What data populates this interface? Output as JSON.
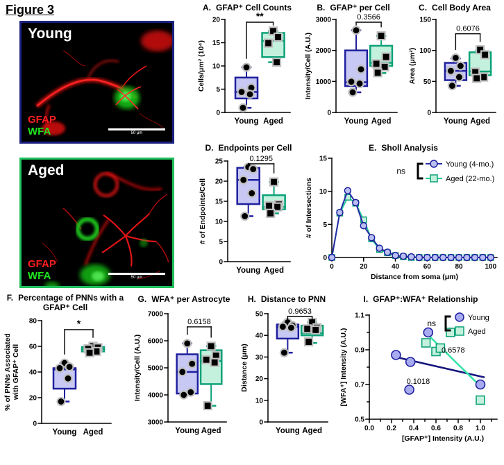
{
  "figure_title": "Figure 3",
  "colors": {
    "young_fill": "#c7c8f4",
    "young_edge": "#1f1f9e",
    "young_line": "#2a2aa8",
    "young_trend": "#15157d",
    "aged_fill": "#c4f1dd",
    "aged_edge": "#0ca178",
    "aged_line": "#25cf97",
    "aged_trend": "#37e3a8",
    "marker": "#000000",
    "marker_halo": "#c0c0c0",
    "gfap_red": "#ff1f1f",
    "wfa_green": "#21e321",
    "young_border": "#1b2180",
    "aged_border": "#1fc05c"
  },
  "images": [
    {
      "name": "Young",
      "gfap_label": "GFAP",
      "wfa_label": "WFA",
      "scale_label": "50 μm"
    },
    {
      "name": "Aged",
      "gfap_label": "GFAP",
      "wfa_label": "WFA",
      "scale_label": "50 μm"
    }
  ],
  "chart_data": [
    {
      "id": "A",
      "type": "box",
      "label": "A.",
      "title": "GFAP⁺ Cell Counts",
      "ylabel": "Cells/μm² (10⁴)",
      "ylim": [
        0,
        20
      ],
      "yticks": [
        0,
        5,
        10,
        15,
        20
      ],
      "p_label": "**",
      "categories": [
        "Young",
        "Aged"
      ],
      "groups": [
        {
          "name": "Young",
          "q1": 3.0,
          "median": 4.4,
          "q3": 7.5,
          "lo": 1.0,
          "hi": 9.7,
          "points": [
            9.7,
            5.3,
            4.4,
            3.9,
            1.0
          ]
        },
        {
          "name": "Aged",
          "q1": 11.9,
          "median": 15.4,
          "q3": 17.1,
          "lo": 10.8,
          "hi": 17.5,
          "points": [
            17.5,
            16.2,
            14.9,
            10.8
          ]
        }
      ]
    },
    {
      "id": "B",
      "type": "box",
      "label": "B.",
      "title": "GFAP⁺ per Cell",
      "ylabel": "Intensity/Cell (A.U.)",
      "ylim": [
        0,
        3000
      ],
      "yticks": [
        0,
        1000,
        2000,
        3000
      ],
      "p_label": "0.3566",
      "categories": [
        "Young",
        "Aged"
      ],
      "groups": [
        {
          "name": "Young",
          "q1": 850,
          "median": 975,
          "q3": 2000,
          "lo": 650,
          "hi": 2650,
          "points": [
            2650,
            1390,
            990,
            930,
            650
          ]
        },
        {
          "name": "Aged",
          "q1": 1500,
          "median": 1600,
          "q3": 2150,
          "lo": 1270,
          "hi": 2470,
          "points": [
            2470,
            1790,
            1570,
            1470,
            1280
          ]
        }
      ]
    },
    {
      "id": "C",
      "type": "box",
      "label": "C.",
      "title": "Cell Body Area",
      "ylabel": "Area (μm²)",
      "ylim": [
        0,
        150
      ],
      "yticks": [
        0,
        50,
        100,
        150
      ],
      "p_label": "0.6076",
      "categories": [
        "Young",
        "Aged"
      ],
      "groups": [
        {
          "name": "Young",
          "q1": 52,
          "median": 67,
          "q3": 80,
          "lo": 43,
          "hi": 87,
          "points": [
            88,
            75,
            67,
            57,
            43
          ]
        },
        {
          "name": "Aged",
          "q1": 60,
          "median": 66,
          "q3": 97,
          "lo": 57,
          "hi": 100,
          "points": [
            101,
            93,
            65,
            57,
            55
          ]
        }
      ]
    },
    {
      "id": "D",
      "type": "box",
      "label": "D.",
      "title": "Endpoints per Cell",
      "ylabel": "# of Endpoints/Cell",
      "ylim": [
        0,
        25
      ],
      "yticks": [
        0,
        5,
        10,
        15,
        20,
        25
      ],
      "p_label": "0.1295",
      "categories": [
        "Young",
        "Aged"
      ],
      "groups": [
        {
          "name": "Young",
          "q1": 14.3,
          "median": 20.3,
          "q3": 23.3,
          "lo": 11.3,
          "hi": 23.5,
          "points": [
            23.5,
            23.0,
            20.3,
            17.0,
            11.3
          ]
        },
        {
          "name": "Aged",
          "q1": 13.0,
          "median": 13.6,
          "q3": 16.5,
          "lo": 12.0,
          "hi": 19.8,
          "points": [
            19.8,
            14.2,
            13.9,
            13.6,
            12.0
          ]
        }
      ]
    },
    {
      "id": "E",
      "type": "line",
      "label": "E.",
      "title": "Sholl Analysis",
      "xlabel": "Distance from soma (μm)",
      "ylabel": "# of Intersections",
      "xlim": [
        0,
        104
      ],
      "ylim": [
        0,
        15
      ],
      "xticks": [
        0,
        20,
        40,
        60,
        80,
        100
      ],
      "yticks": [
        0,
        5,
        10,
        15
      ],
      "legend": {
        "ns": "ns",
        "items": [
          "Young (4-mo.)",
          "Aged (22-mo.)"
        ]
      },
      "x": [
        0,
        5,
        10,
        15,
        20,
        25,
        30,
        35,
        40,
        45,
        50,
        55,
        60,
        65,
        70,
        75,
        80,
        85,
        90,
        95,
        100
      ],
      "series": [
        {
          "name": "Young (4-mo.)",
          "values": [
            0,
            6.8,
            10.1,
            8.3,
            4.8,
            3.0,
            1.4,
            0.8,
            0.3,
            0.2,
            0.1,
            0,
            0,
            0,
            0,
            0,
            0,
            0,
            0,
            0,
            0
          ]
        },
        {
          "name": "Aged (22-mo.)",
          "values": [
            0,
            6.7,
            9.1,
            8.2,
            5.7,
            2.8,
            1.2,
            0.7,
            0.3,
            0.1,
            0,
            0,
            0,
            0,
            0,
            0,
            0,
            0,
            0,
            0,
            0
          ]
        }
      ]
    },
    {
      "id": "F",
      "type": "box",
      "label": "F.",
      "title": "Percentage of PNNs with a GFAP⁺ Cell",
      "ylabel": "% of PNNs Associated with GFAP⁺ Cell",
      "ylabel_lines": [
        "% of PNNs Associated",
        "with GFAP⁺ Cell"
      ],
      "ylim": [
        0,
        80
      ],
      "yticks": [
        0,
        20,
        40,
        60,
        80
      ],
      "p_label": "*",
      "categories": [
        "Young",
        "Aged"
      ],
      "groups": [
        {
          "name": "Young",
          "q1": 27,
          "median": 42,
          "q3": 43,
          "lo": 17,
          "hi": 47,
          "points": [
            47,
            44,
            43,
            35,
            17
          ]
        },
        {
          "name": "Aged",
          "q1": 56,
          "median": 58,
          "q3": 59.5,
          "lo": 55,
          "hi": 60,
          "points": [
            60,
            59,
            58,
            56,
            55
          ]
        }
      ]
    },
    {
      "id": "G",
      "type": "box",
      "label": "G.",
      "title": "WFA⁺ per Astrocyte",
      "ylabel": "Intensity/Cell (A.U.)",
      "ylim": [
        3000,
        7000
      ],
      "yticks": [
        3000,
        4000,
        5000,
        6000,
        7000
      ],
      "p_label": "0.6158",
      "categories": [
        "Young",
        "Aged"
      ],
      "groups": [
        {
          "name": "Young",
          "q1": 4050,
          "median": 4850,
          "q3": 5500,
          "lo": 4000,
          "hi": 5900,
          "points": [
            5900,
            5150,
            4850,
            4100,
            4000
          ]
        },
        {
          "name": "Aged",
          "q1": 4400,
          "median": 5250,
          "q3": 5650,
          "lo": 3600,
          "hi": 5800,
          "points": [
            5800,
            5450,
            5300,
            5200,
            3600
          ]
        }
      ]
    },
    {
      "id": "H",
      "type": "box",
      "label": "H.",
      "title": "Distance to PNN",
      "ylabel": "Distance (μm)",
      "ylim": [
        0,
        50
      ],
      "yticks": [
        0,
        10,
        20,
        30,
        40,
        50
      ],
      "p_label": "0.9653",
      "categories": [
        "Young",
        "Aged"
      ],
      "groups": [
        {
          "name": "Young",
          "q1": 38.5,
          "median": 44,
          "q3": 45,
          "lo": 32,
          "hi": 46,
          "points": [
            46,
            44.5,
            44,
            43.5,
            32
          ]
        },
        {
          "name": "Aged",
          "q1": 40,
          "median": 41,
          "q3": 44.5,
          "lo": 36.5,
          "hi": 46,
          "points": [
            46,
            43.5,
            43,
            42.5,
            37
          ]
        }
      ]
    },
    {
      "id": "I",
      "type": "scatter",
      "label": "I.",
      "title": "GFAP⁺:WFA⁺ Relationship",
      "xlabel": "[GFAP⁺] Intensity (A.U.)",
      "ylabel": "[WFA⁺] Intensity (A.U.)",
      "xlim": [
        0,
        1.15
      ],
      "ylim": [
        0.5,
        1.1
      ],
      "xticks": [
        "0.0",
        "0.2",
        "0.4",
        "0.6",
        "0.8",
        "1.0"
      ],
      "yticks": [
        "0.5",
        "0.7",
        "0.9",
        "1.1"
      ],
      "legend": {
        "ns": "ns",
        "items": [
          "Young",
          "Aged"
        ]
      },
      "series": [
        {
          "name": "Young",
          "points": [
            [
              0.24,
              0.87
            ],
            [
              0.37,
              0.83
            ],
            [
              0.36,
              0.67
            ],
            [
              0.53,
              1.0
            ],
            [
              1.0,
              0.7
            ]
          ],
          "trend": [
            [
              0.22,
              0.861
            ],
            [
              1.03,
              0.742
            ]
          ],
          "p_label": "0.1018",
          "p_at": [
            0.44,
            0.705
          ]
        },
        {
          "name": "Aged",
          "points": [
            [
              0.51,
              0.94
            ],
            [
              0.6,
              0.89
            ],
            [
              0.64,
              0.91
            ],
            [
              0.73,
              1.0
            ],
            [
              1.0,
              0.61
            ]
          ],
          "trend": [
            [
              0.53,
              0.985
            ],
            [
              1.0,
              0.69
            ]
          ],
          "p_label": "0.6578",
          "p_at": [
            0.755,
            0.885
          ]
        }
      ]
    }
  ]
}
